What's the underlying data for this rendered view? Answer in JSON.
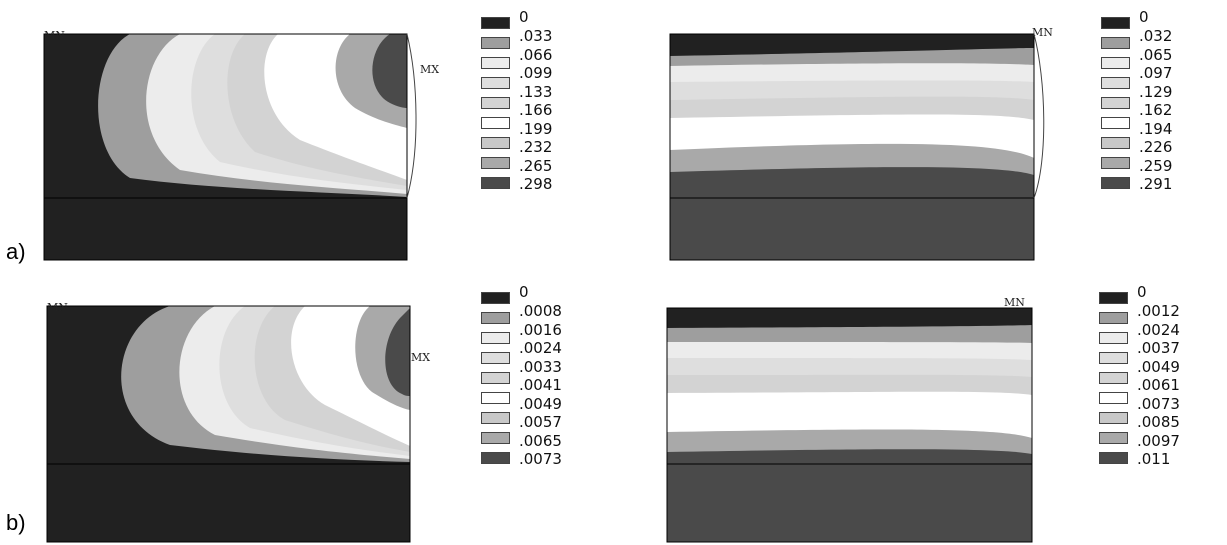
{
  "shade_colors": [
    "#212121",
    "#9e9e9e",
    "#ececec",
    "#dedede",
    "#d3d3d3",
    "#ffffff",
    "#c8c8c8",
    "#a9a9a9",
    "#4a4a4a"
  ],
  "base_color_left": "#212121",
  "base_color_right": "#4a4a4a",
  "rows": [
    {
      "label": "a)",
      "left_plot": {
        "min_label": "MN",
        "max_label": "MX",
        "legend": {
          "zero": "0",
          "values": [
            ".033",
            ".066",
            ".099",
            ".133",
            ".166",
            ".199",
            ".232",
            ".265",
            ".298"
          ]
        }
      },
      "right_plot": {
        "min_label": "MN",
        "legend": {
          "zero": "0",
          "values": [
            ".032",
            ".065",
            ".097",
            ".129",
            ".162",
            ".194",
            ".226",
            ".259",
            ".291"
          ]
        }
      }
    },
    {
      "label": "b)",
      "left_plot": {
        "min_label": "MN",
        "max_label": "MX",
        "legend": {
          "zero": "0",
          "values": [
            ".0008",
            ".0016",
            ".0024",
            ".0033",
            ".0041",
            ".0049",
            ".0057",
            ".0065",
            ".0073"
          ]
        }
      },
      "right_plot": {
        "min_label": "MN",
        "legend": {
          "zero": "0",
          "values": [
            ".0012",
            ".0024",
            ".0037",
            ".0049",
            ".0061",
            ".0073",
            ".0085",
            ".0097",
            ".011"
          ]
        }
      }
    }
  ]
}
